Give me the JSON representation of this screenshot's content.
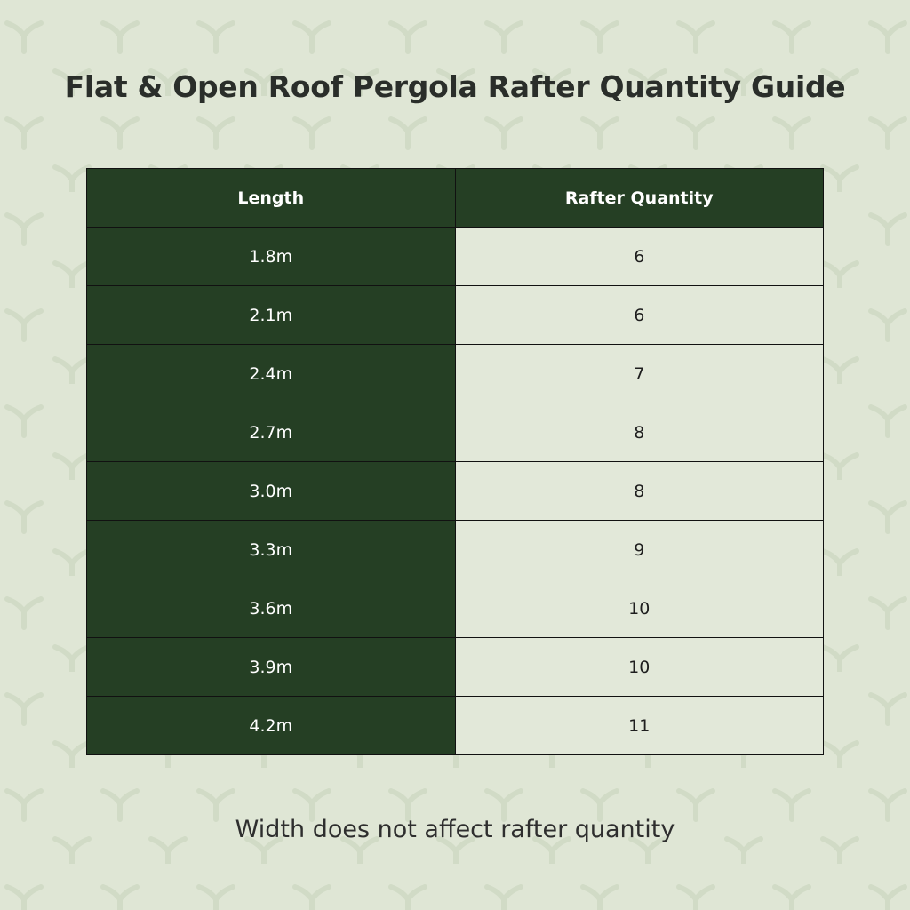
{
  "header": {
    "title": "Flat & Open Roof Pergola Rafter Quantity Guide"
  },
  "table": {
    "columns": [
      "Length",
      "Rafter Quantity"
    ],
    "rows": [
      [
        "1.8m",
        6
      ],
      [
        "2.1m",
        6
      ],
      [
        "2.4m",
        7
      ],
      [
        "2.7m",
        8
      ],
      [
        "3.0m",
        8
      ],
      [
        "3.3m",
        9
      ],
      [
        "3.6m",
        10
      ],
      [
        "3.9m",
        10
      ],
      [
        "4.2m",
        11
      ]
    ]
  },
  "footer": {
    "note": "Width does not affect rafter quantity"
  }
}
